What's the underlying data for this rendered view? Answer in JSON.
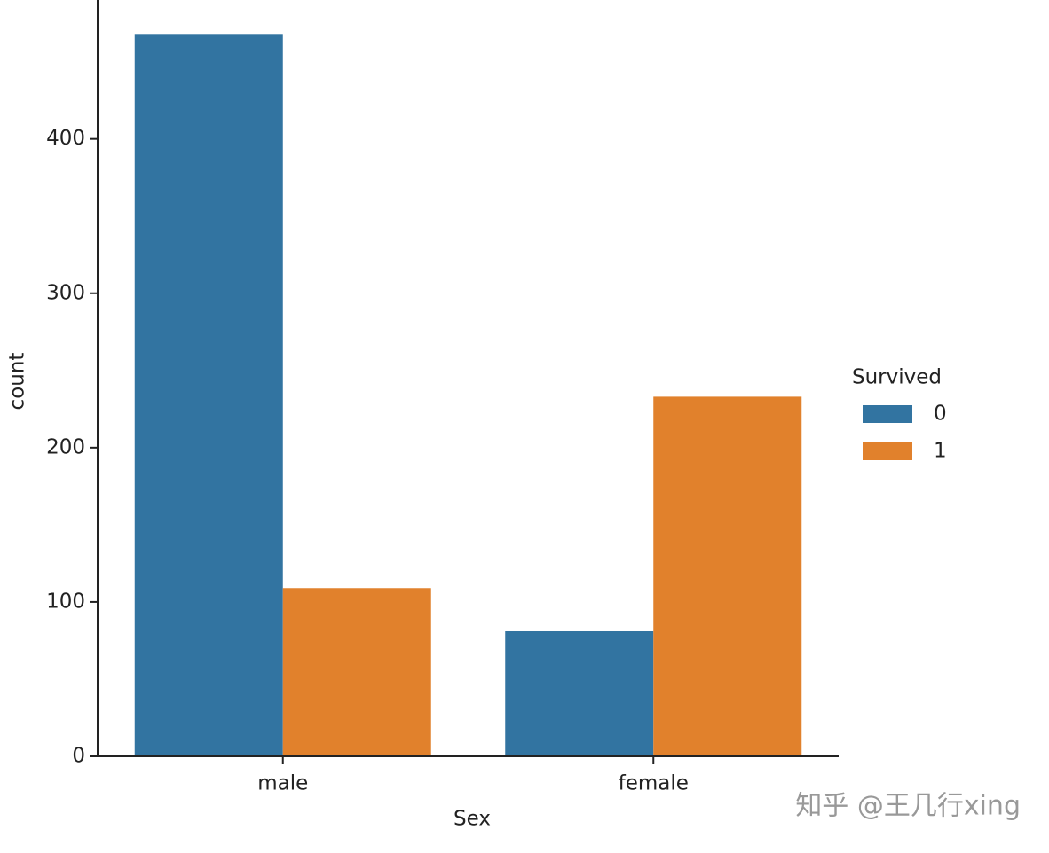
{
  "chart_data": {
    "type": "bar",
    "x_label": "Sex",
    "y_label": "count",
    "categories": [
      "male",
      "female"
    ],
    "series": [
      {
        "name": "0",
        "color": "#3274a1",
        "values": [
          468,
          81
        ]
      },
      {
        "name": "1",
        "color": "#e1812c",
        "values": [
          109,
          233
        ]
      }
    ],
    "legend_title": "Survived",
    "legend_position": "right",
    "ylim": [
      0,
      490
    ],
    "yticks": [
      0,
      100,
      200,
      300,
      400
    ],
    "grid": false,
    "watermark": "知乎 @王几行xing"
  }
}
